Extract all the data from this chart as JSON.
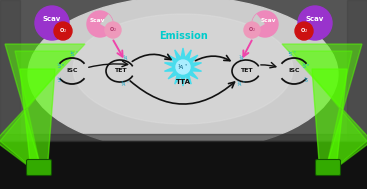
{
  "fig_width": 3.67,
  "fig_height": 1.89,
  "dpi": 100,
  "scav_purple_color": "#9933cc",
  "scav_pink_color": "#ee88bb",
  "o2_red_color": "#cc1111",
  "o2_pink_color": "#ee99bb",
  "arrow_pink_color": "#ee44aa",
  "arrow_black_color": "#111111",
  "label_cyan_color": "#22aacc",
  "laser_green": "#55ff00",
  "isc_label": "ISC",
  "tet_label": "TET",
  "tta_label": "TTA",
  "emission_label": "Emission",
  "emission_color": "#00cccc"
}
